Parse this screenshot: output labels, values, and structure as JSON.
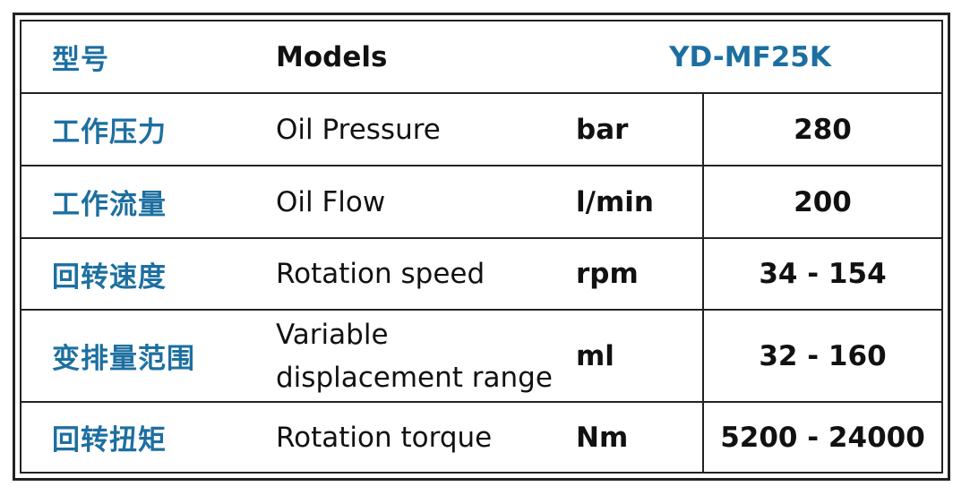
{
  "table": {
    "header": {
      "label_zh": "型号",
      "label_en": "Models",
      "model": "YD-MF25K"
    },
    "rows": [
      {
        "label_zh": "工作压力",
        "label_en": "Oil Pressure",
        "unit": "bar",
        "value": "280"
      },
      {
        "label_zh": "工作流量",
        "label_en": "Oil Flow",
        "unit": "l/min",
        "value": "200"
      },
      {
        "label_zh": "回转速度",
        "label_en": "Rotation speed",
        "unit": "rpm",
        "value": "34 - 154"
      },
      {
        "label_zh": "变排量范围",
        "label_en_line1": "Variable",
        "label_en_line2": "displacement range",
        "unit": "ml",
        "value": "32 - 160"
      },
      {
        "label_zh": "回转扭矩",
        "label_en": "Rotation torque",
        "unit": "Nm",
        "value": "5200 - 24000"
      }
    ]
  },
  "colors": {
    "accent": "#1d6fa0",
    "text": "#111111",
    "border": "#222222"
  }
}
